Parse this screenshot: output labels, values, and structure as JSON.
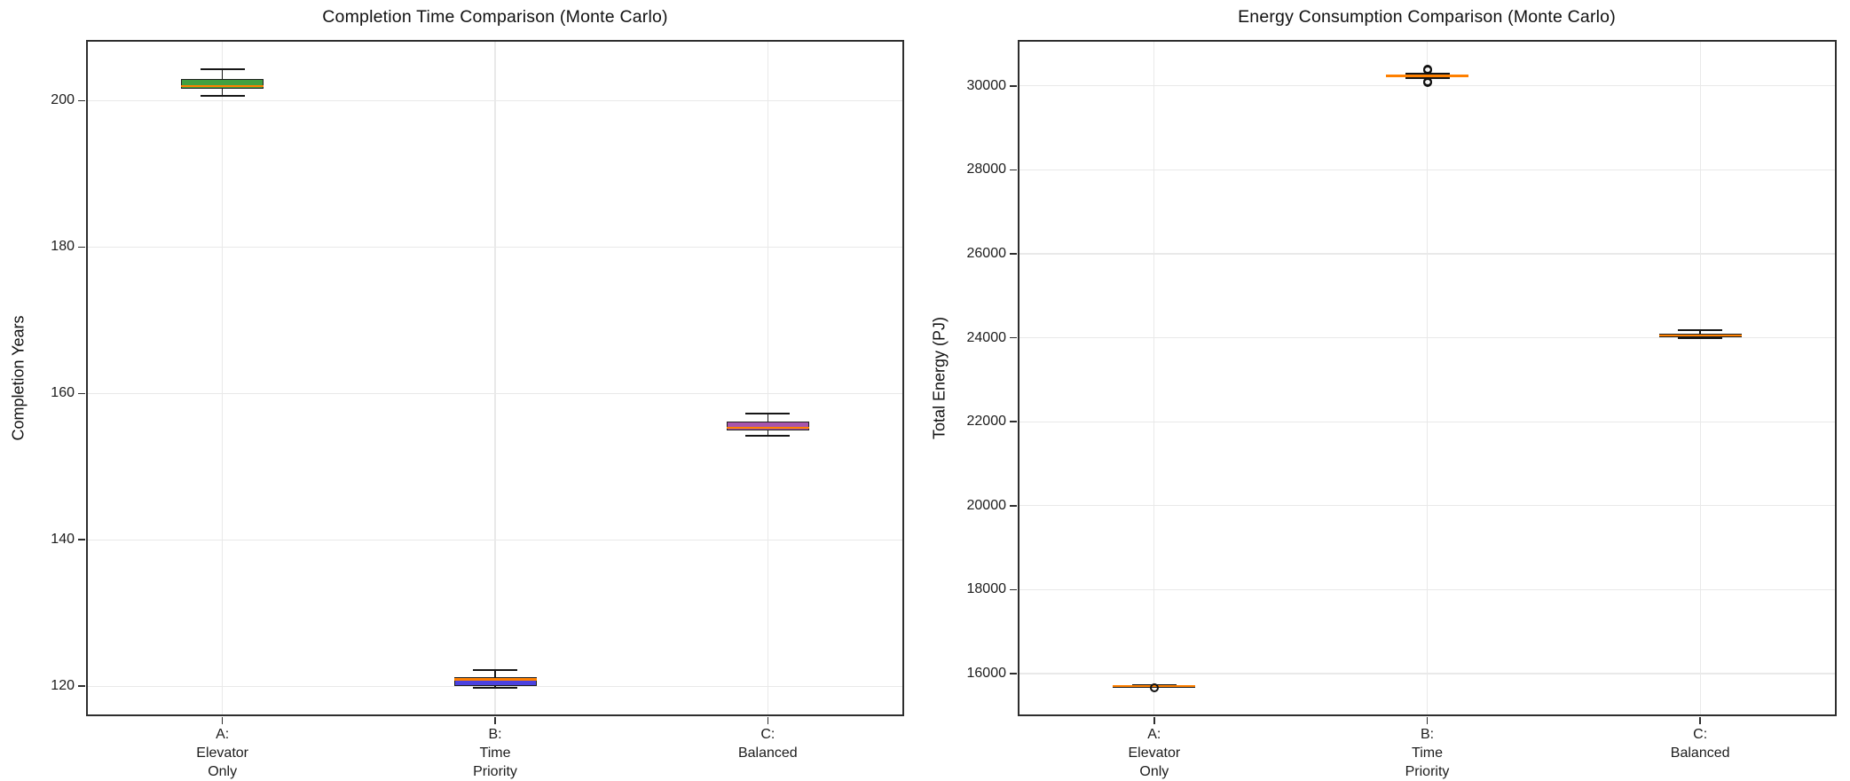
{
  "figure": {
    "background": "#ffffff"
  },
  "chart_data": [
    {
      "type": "box",
      "title": "Completion Time Comparison (Monte Carlo)",
      "xlabel": "",
      "ylabel": "Completion Years",
      "categories": [
        "A: Elevator\nOnly",
        "B: Time\nPriority",
        "C: Balanced"
      ],
      "yticks": [
        120,
        140,
        160,
        180,
        200
      ],
      "ylim": [
        115.9,
        208.3
      ],
      "grid": true,
      "legend": null,
      "median_color": "#ff8000",
      "groups": [
        {
          "label": "A: Elevator Only",
          "fill": "#41a041",
          "whislo": 200.7,
          "q1": 201.6,
          "med": 202.0,
          "q3": 203.0,
          "whishi": 204.3,
          "fliers": []
        },
        {
          "label": "B: Time Priority",
          "fill": "#4b42e0",
          "whislo": 119.8,
          "q1": 120.0,
          "med": 120.9,
          "q3": 121.2,
          "whishi": 122.2,
          "fliers": []
        },
        {
          "label": "C: Balanced",
          "fill": "#a855ab",
          "whislo": 154.2,
          "q1": 154.9,
          "med": 155.3,
          "q3": 156.2,
          "whishi": 157.2,
          "fliers": []
        }
      ]
    },
    {
      "type": "box",
      "title": "Energy Consumption Comparison (Monte Carlo)",
      "xlabel": "",
      "ylabel": "Total Energy (PJ)",
      "categories": [
        "A: Elevator\nOnly",
        "B: Time\nPriority",
        "C: Balanced"
      ],
      "yticks": [
        16000,
        18000,
        20000,
        22000,
        24000,
        26000,
        28000,
        30000
      ],
      "ylim": [
        14985,
        31095
      ],
      "grid": true,
      "legend": null,
      "median_color": "#ff8000",
      "groups": [
        {
          "label": "A: Elevator Only",
          "fill": "#41a041",
          "whislo": 15675,
          "q1": 15692,
          "med": 15702,
          "q3": 15712,
          "whishi": 15728,
          "fliers": [
            15655
          ]
        },
        {
          "label": "B: Time Priority",
          "fill": "#4b42e0",
          "whislo": 30190,
          "q1": 30215,
          "med": 30235,
          "q3": 30258,
          "whishi": 30285,
          "fliers": [
            30405,
            30385,
            30095,
            30075
          ]
        },
        {
          "label": "C: Balanced",
          "fill": "#a855ab",
          "whislo": 23985,
          "q1": 24020,
          "med": 24055,
          "q3": 24092,
          "whishi": 24175,
          "fliers": []
        }
      ]
    }
  ]
}
